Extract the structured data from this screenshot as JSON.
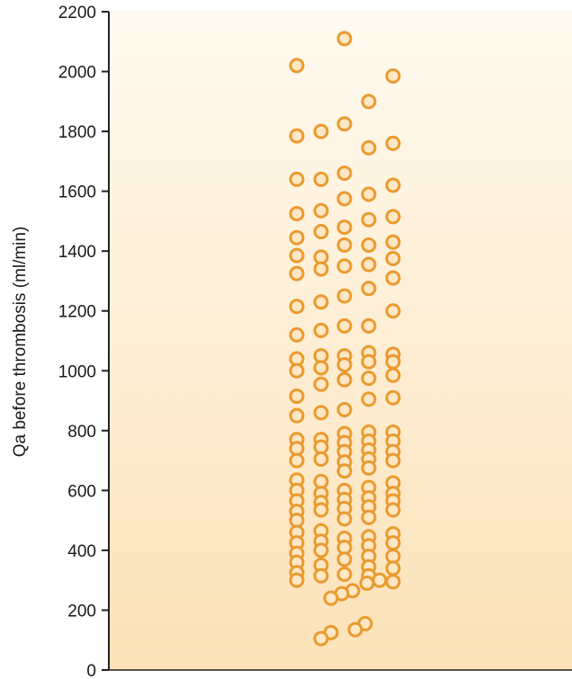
{
  "colors": {
    "background_top": "#fffaf0",
    "background_bottom": "#fbe2b8",
    "marker_stroke": "#ea9a2e",
    "marker_fill": "#fde7c4",
    "axis": "#222222"
  },
  "chart_data": {
    "type": "scatter",
    "title": "",
    "xlabel": "",
    "ylabel": "Qa before thrombosis (ml/min)",
    "ylim": [
      0,
      2200
    ],
    "yticks": [
      "0",
      "200",
      "400",
      "600",
      "800",
      "1000",
      "1200",
      "1400",
      "1600",
      "1800",
      "2000",
      "2200"
    ],
    "grid": false,
    "legend": "none",
    "x_note": "single category; x values are horizontal jitter positions in the column (0–1)",
    "points": [
      {
        "x": 0.0,
        "y": 2020
      },
      {
        "x": 0.0,
        "y": 1785
      },
      {
        "x": 0.0,
        "y": 1640
      },
      {
        "x": 0.0,
        "y": 1525
      },
      {
        "x": 0.0,
        "y": 1445
      },
      {
        "x": 0.0,
        "y": 1385
      },
      {
        "x": 0.0,
        "y": 1325
      },
      {
        "x": 0.0,
        "y": 1215
      },
      {
        "x": 0.0,
        "y": 1120
      },
      {
        "x": 0.0,
        "y": 1040
      },
      {
        "x": 0.0,
        "y": 1000
      },
      {
        "x": 0.0,
        "y": 915
      },
      {
        "x": 0.0,
        "y": 850
      },
      {
        "x": 0.0,
        "y": 770
      },
      {
        "x": 0.0,
        "y": 740
      },
      {
        "x": 0.0,
        "y": 700
      },
      {
        "x": 0.0,
        "y": 635
      },
      {
        "x": 0.0,
        "y": 600
      },
      {
        "x": 0.0,
        "y": 565
      },
      {
        "x": 0.0,
        "y": 530
      },
      {
        "x": 0.0,
        "y": 500
      },
      {
        "x": 0.0,
        "y": 460
      },
      {
        "x": 0.0,
        "y": 425
      },
      {
        "x": 0.0,
        "y": 390
      },
      {
        "x": 0.0,
        "y": 360
      },
      {
        "x": 0.0,
        "y": 325
      },
      {
        "x": 0.0,
        "y": 300
      },
      {
        "x": 0.27,
        "y": 1800
      },
      {
        "x": 0.27,
        "y": 1640
      },
      {
        "x": 0.27,
        "y": 1535
      },
      {
        "x": 0.27,
        "y": 1465
      },
      {
        "x": 0.27,
        "y": 1380
      },
      {
        "x": 0.27,
        "y": 1340
      },
      {
        "x": 0.27,
        "y": 1230
      },
      {
        "x": 0.27,
        "y": 1135
      },
      {
        "x": 0.27,
        "y": 1050
      },
      {
        "x": 0.27,
        "y": 1010
      },
      {
        "x": 0.27,
        "y": 955
      },
      {
        "x": 0.27,
        "y": 860
      },
      {
        "x": 0.27,
        "y": 770
      },
      {
        "x": 0.27,
        "y": 745
      },
      {
        "x": 0.27,
        "y": 705
      },
      {
        "x": 0.27,
        "y": 630
      },
      {
        "x": 0.27,
        "y": 590
      },
      {
        "x": 0.27,
        "y": 560
      },
      {
        "x": 0.27,
        "y": 535
      },
      {
        "x": 0.27,
        "y": 465
      },
      {
        "x": 0.27,
        "y": 430
      },
      {
        "x": 0.27,
        "y": 400
      },
      {
        "x": 0.27,
        "y": 350
      },
      {
        "x": 0.27,
        "y": 315
      },
      {
        "x": 0.53,
        "y": 2110
      },
      {
        "x": 0.53,
        "y": 1825
      },
      {
        "x": 0.53,
        "y": 1660
      },
      {
        "x": 0.53,
        "y": 1575
      },
      {
        "x": 0.53,
        "y": 1480
      },
      {
        "x": 0.53,
        "y": 1420
      },
      {
        "x": 0.53,
        "y": 1350
      },
      {
        "x": 0.53,
        "y": 1250
      },
      {
        "x": 0.53,
        "y": 1150
      },
      {
        "x": 0.53,
        "y": 1050
      },
      {
        "x": 0.53,
        "y": 1020
      },
      {
        "x": 0.53,
        "y": 970
      },
      {
        "x": 0.53,
        "y": 870
      },
      {
        "x": 0.53,
        "y": 790
      },
      {
        "x": 0.53,
        "y": 760
      },
      {
        "x": 0.53,
        "y": 730
      },
      {
        "x": 0.53,
        "y": 695
      },
      {
        "x": 0.53,
        "y": 665
      },
      {
        "x": 0.53,
        "y": 600
      },
      {
        "x": 0.53,
        "y": 570
      },
      {
        "x": 0.53,
        "y": 540
      },
      {
        "x": 0.53,
        "y": 505
      },
      {
        "x": 0.53,
        "y": 440
      },
      {
        "x": 0.53,
        "y": 410
      },
      {
        "x": 0.53,
        "y": 370
      },
      {
        "x": 0.53,
        "y": 320
      },
      {
        "x": 0.8,
        "y": 1900
      },
      {
        "x": 0.8,
        "y": 1745
      },
      {
        "x": 0.8,
        "y": 1590
      },
      {
        "x": 0.8,
        "y": 1505
      },
      {
        "x": 0.8,
        "y": 1420
      },
      {
        "x": 0.8,
        "y": 1355
      },
      {
        "x": 0.8,
        "y": 1275
      },
      {
        "x": 0.8,
        "y": 1150
      },
      {
        "x": 0.8,
        "y": 1060
      },
      {
        "x": 0.8,
        "y": 1030
      },
      {
        "x": 0.8,
        "y": 975
      },
      {
        "x": 0.8,
        "y": 905
      },
      {
        "x": 0.8,
        "y": 795
      },
      {
        "x": 0.8,
        "y": 765
      },
      {
        "x": 0.8,
        "y": 735
      },
      {
        "x": 0.8,
        "y": 705
      },
      {
        "x": 0.8,
        "y": 675
      },
      {
        "x": 0.8,
        "y": 610
      },
      {
        "x": 0.8,
        "y": 575
      },
      {
        "x": 0.8,
        "y": 545
      },
      {
        "x": 0.8,
        "y": 510
      },
      {
        "x": 0.8,
        "y": 445
      },
      {
        "x": 0.8,
        "y": 415
      },
      {
        "x": 0.8,
        "y": 380
      },
      {
        "x": 0.8,
        "y": 345
      },
      {
        "x": 0.8,
        "y": 315
      },
      {
        "x": 1.07,
        "y": 1985
      },
      {
        "x": 1.07,
        "y": 1760
      },
      {
        "x": 1.07,
        "y": 1620
      },
      {
        "x": 1.07,
        "y": 1515
      },
      {
        "x": 1.07,
        "y": 1430
      },
      {
        "x": 1.07,
        "y": 1375
      },
      {
        "x": 1.07,
        "y": 1310
      },
      {
        "x": 1.07,
        "y": 1200
      },
      {
        "x": 1.07,
        "y": 1055
      },
      {
        "x": 1.07,
        "y": 1030
      },
      {
        "x": 1.07,
        "y": 985
      },
      {
        "x": 1.07,
        "y": 910
      },
      {
        "x": 1.07,
        "y": 795
      },
      {
        "x": 1.07,
        "y": 765
      },
      {
        "x": 1.07,
        "y": 730
      },
      {
        "x": 1.07,
        "y": 700
      },
      {
        "x": 1.07,
        "y": 625
      },
      {
        "x": 1.07,
        "y": 590
      },
      {
        "x": 1.07,
        "y": 565
      },
      {
        "x": 1.07,
        "y": 535
      },
      {
        "x": 1.07,
        "y": 455
      },
      {
        "x": 1.07,
        "y": 425
      },
      {
        "x": 1.07,
        "y": 380
      },
      {
        "x": 1.07,
        "y": 340
      },
      {
        "x": 0.92,
        "y": 300
      },
      {
        "x": 1.07,
        "y": 295
      },
      {
        "x": 0.78,
        "y": 290
      },
      {
        "x": 0.62,
        "y": 265
      },
      {
        "x": 0.5,
        "y": 255
      },
      {
        "x": 0.38,
        "y": 240
      },
      {
        "x": 0.76,
        "y": 155
      },
      {
        "x": 0.65,
        "y": 135
      },
      {
        "x": 0.38,
        "y": 125
      },
      {
        "x": 0.27,
        "y": 105
      }
    ]
  }
}
